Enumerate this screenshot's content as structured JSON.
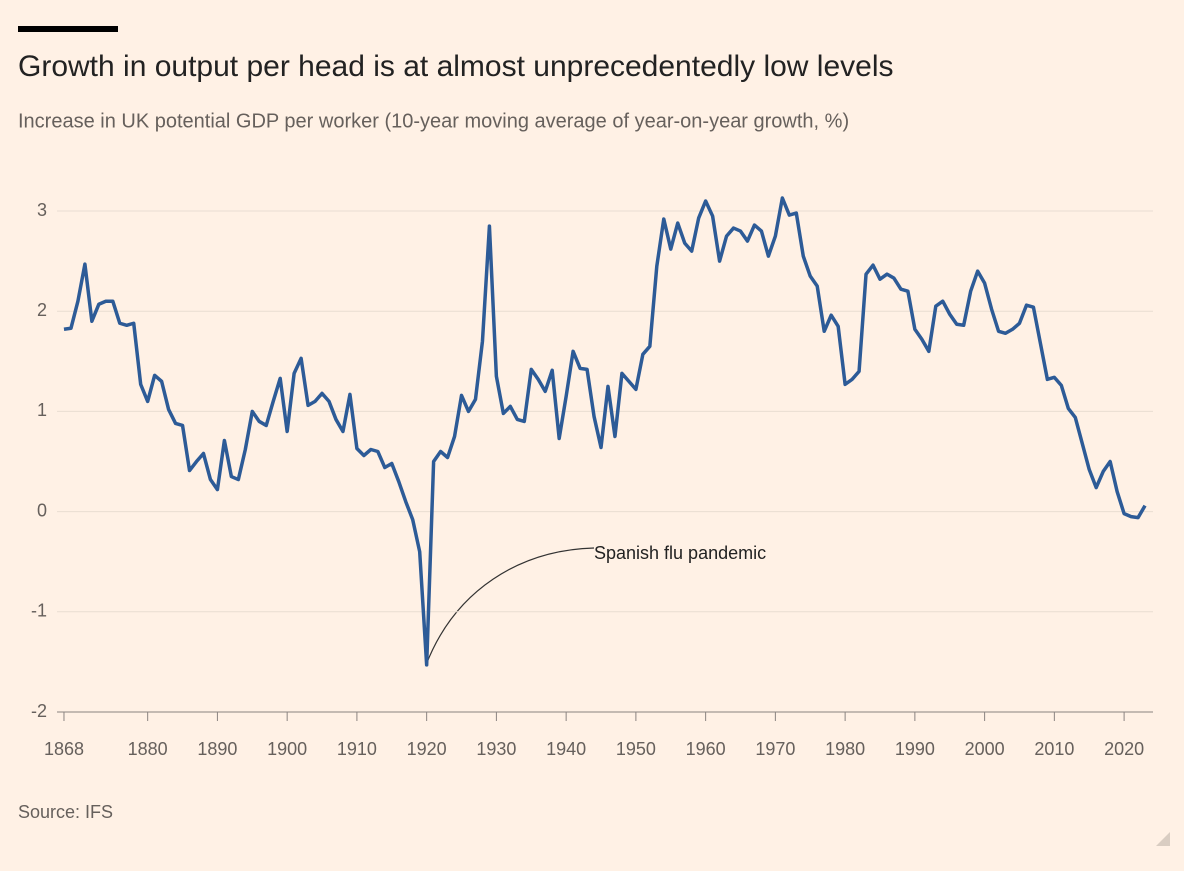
{
  "chart_data": {
    "type": "line",
    "title": "Growth in output per head is at almost unprecedentedly low levels",
    "subtitle": "Increase in UK potential GDP per worker (10-year moving average of year-on-year growth, %)",
    "source": "Source: IFS",
    "annotation": "Spanish flu pandemic",
    "x": [
      1868,
      1869,
      1870,
      1871,
      1872,
      1873,
      1874,
      1875,
      1876,
      1877,
      1878,
      1879,
      1880,
      1881,
      1882,
      1883,
      1884,
      1885,
      1886,
      1887,
      1888,
      1889,
      1890,
      1891,
      1892,
      1893,
      1894,
      1895,
      1896,
      1897,
      1898,
      1899,
      1900,
      1901,
      1902,
      1903,
      1904,
      1905,
      1906,
      1907,
      1908,
      1909,
      1910,
      1911,
      1912,
      1913,
      1914,
      1915,
      1916,
      1917,
      1918,
      1919,
      1920,
      1921,
      1922,
      1923,
      1924,
      1925,
      1926,
      1927,
      1928,
      1929,
      1930,
      1931,
      1932,
      1933,
      1934,
      1935,
      1936,
      1937,
      1938,
      1939,
      1940,
      1941,
      1942,
      1943,
      1944,
      1945,
      1946,
      1947,
      1948,
      1949,
      1950,
      1951,
      1952,
      1953,
      1954,
      1955,
      1956,
      1957,
      1958,
      1959,
      1960,
      1961,
      1962,
      1963,
      1964,
      1965,
      1966,
      1967,
      1968,
      1969,
      1970,
      1971,
      1972,
      1973,
      1974,
      1975,
      1976,
      1977,
      1978,
      1979,
      1980,
      1981,
      1982,
      1983,
      1984,
      1985,
      1986,
      1987,
      1988,
      1989,
      1990,
      1991,
      1992,
      1993,
      1994,
      1995,
      1996,
      1997,
      1998,
      1999,
      2000,
      2001,
      2002,
      2003,
      2004,
      2005,
      2006,
      2007,
      2008,
      2009,
      2010,
      2011,
      2012,
      2013,
      2014,
      2015,
      2016,
      2017,
      2018,
      2019,
      2020,
      2021,
      2022,
      2023
    ],
    "series": [
      {
        "name": "UK potential GDP per worker growth",
        "color": "#2d5b97",
        "values": [
          1.82,
          1.83,
          2.1,
          2.47,
          1.9,
          2.07,
          2.1,
          2.1,
          1.88,
          1.86,
          1.88,
          1.27,
          1.1,
          1.36,
          1.3,
          1.02,
          0.88,
          0.86,
          0.41,
          0.5,
          0.58,
          0.32,
          0.22,
          0.71,
          0.35,
          0.32,
          0.62,
          1.0,
          0.9,
          0.86,
          1.1,
          1.33,
          0.8,
          1.38,
          1.53,
          1.06,
          1.1,
          1.18,
          1.1,
          0.92,
          0.8,
          1.17,
          0.63,
          0.56,
          0.62,
          0.6,
          0.44,
          0.48,
          0.3,
          0.1,
          -0.08,
          -0.4,
          -1.53,
          0.5,
          0.6,
          0.54,
          0.75,
          1.16,
          1.0,
          1.12,
          1.7,
          2.85,
          1.35,
          0.98,
          1.05,
          0.92,
          0.9,
          1.42,
          1.32,
          1.2,
          1.41,
          0.73,
          1.15,
          1.6,
          1.43,
          1.42,
          0.95,
          0.64,
          1.25,
          0.75,
          1.38,
          1.3,
          1.22,
          1.57,
          1.65,
          2.45,
          2.92,
          2.62,
          2.88,
          2.68,
          2.6,
          2.93,
          3.1,
          2.95,
          2.5,
          2.75,
          2.83,
          2.8,
          2.7,
          2.86,
          2.8,
          2.55,
          2.75,
          3.13,
          2.96,
          2.98,
          2.55,
          2.35,
          2.25,
          1.8,
          1.96,
          1.85,
          1.27,
          1.32,
          1.4,
          2.37,
          2.46,
          2.32,
          2.37,
          2.33,
          2.22,
          2.2,
          1.82,
          1.72,
          1.6,
          2.05,
          2.1,
          1.97,
          1.87,
          1.86,
          2.2,
          2.4,
          2.28,
          2.02,
          1.8,
          1.78,
          1.82,
          1.88,
          2.06,
          2.04,
          1.68,
          1.32,
          1.34,
          1.26,
          1.03,
          0.94,
          0.68,
          0.42,
          0.24,
          0.4,
          0.5,
          0.2,
          -0.02,
          -0.05,
          -0.06,
          0.06
        ]
      }
    ],
    "xlim": [
      1867,
      2024
    ],
    "xticks": [
      1868,
      1880,
      1890,
      1900,
      1910,
      1920,
      1930,
      1940,
      1950,
      1960,
      1970,
      1980,
      1990,
      2000,
      2010,
      2020
    ],
    "ylim": [
      -2,
      3.2
    ],
    "yticks": [
      -2,
      -1,
      0,
      1,
      2,
      3
    ],
    "grid": true
  }
}
